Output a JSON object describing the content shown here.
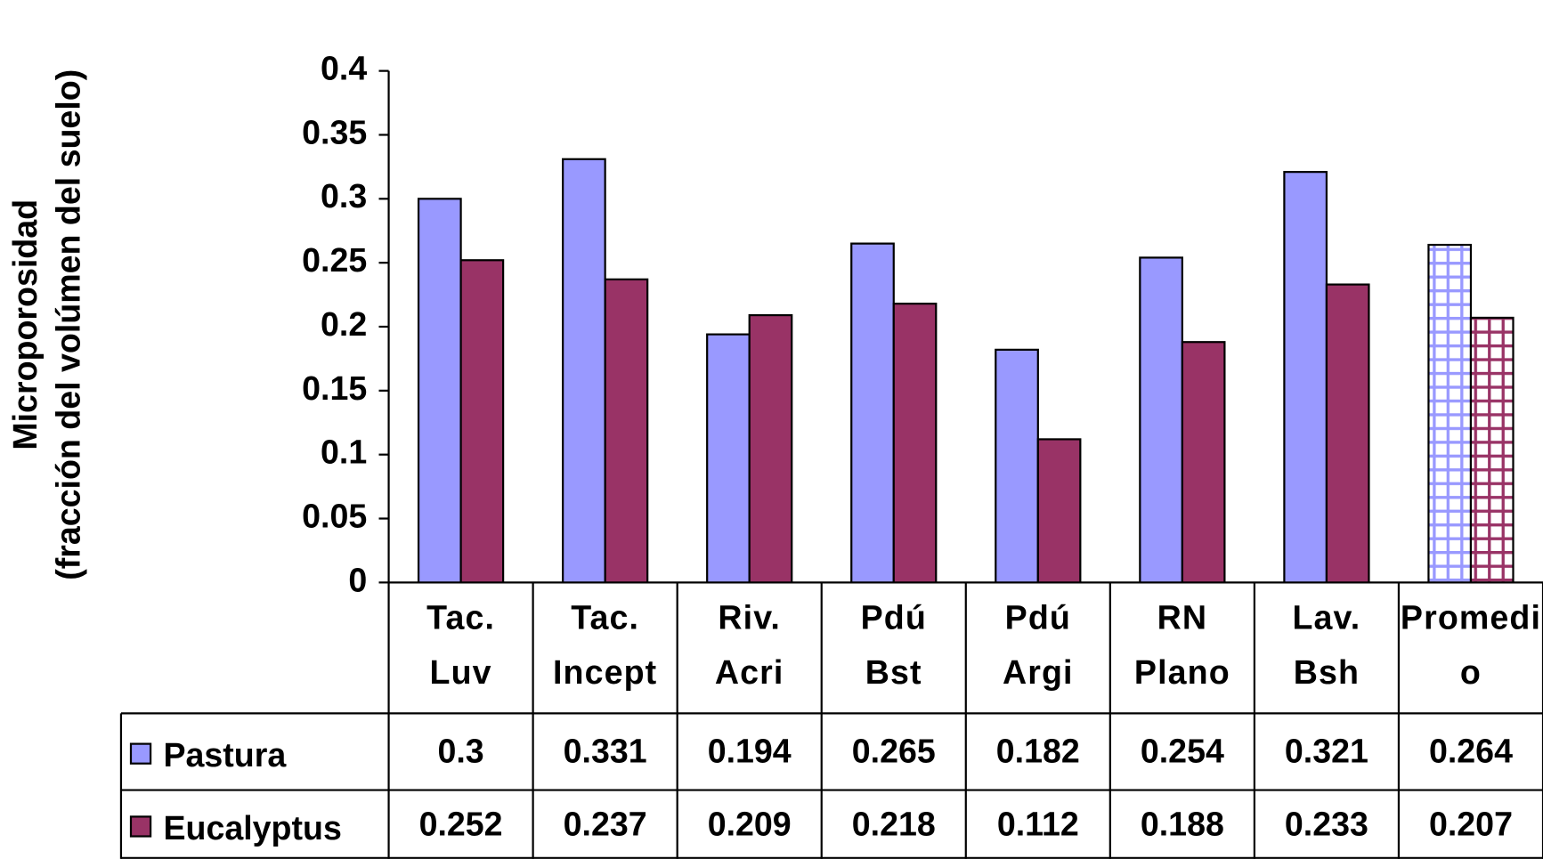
{
  "chart_data": {
    "type": "bar",
    "ylabel": [
      "Microporosidad",
      "(fracción del volúmen del suelo)"
    ],
    "categories": [
      "Tac.\nLuv",
      "Tac.\nIncept",
      "Riv.\nAcri",
      "Pdú\nBst",
      "Pdú\nArgi",
      "RN\nPlano",
      "Lav.\nBsh",
      "Promedio"
    ],
    "series": [
      {
        "name": "Pastura",
        "color": "#9999ff",
        "values": [
          0.3,
          0.331,
          0.194,
          0.265,
          0.182,
          0.254,
          0.321,
          0.264
        ]
      },
      {
        "name": "Eucalyptus",
        "color": "#993366",
        "values": [
          0.252,
          0.237,
          0.209,
          0.218,
          0.112,
          0.188,
          0.233,
          0.207
        ]
      }
    ],
    "ylim": [
      0,
      0.4
    ],
    "yticks": [
      0,
      0.05,
      0.1,
      0.15,
      0.2,
      0.25,
      0.3,
      0.35,
      0.4
    ],
    "grid": false
  }
}
